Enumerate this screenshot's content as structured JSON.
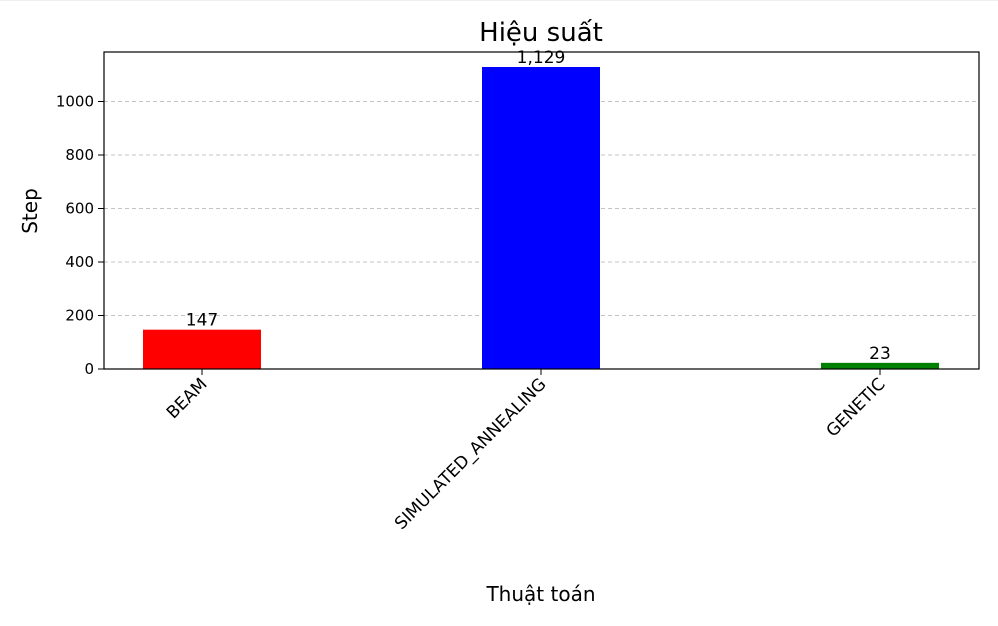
{
  "chart_data": {
    "type": "bar",
    "title": "Hiệu suất",
    "xlabel": "Thuật toán",
    "ylabel": "Step",
    "categories": [
      "BEAM",
      "SIMULATED_ANNEALING",
      "GENETIC"
    ],
    "values": [
      147,
      1129,
      23
    ],
    "value_labels": [
      "147",
      "1,129",
      "23"
    ],
    "colors": [
      "#ff0000",
      "#0000ff",
      "#008000"
    ],
    "ylim": [
      0,
      1185
    ],
    "yticks": [
      0,
      200,
      400,
      600,
      800,
      1000
    ],
    "grid": "y-dashed",
    "legend": "none"
  }
}
